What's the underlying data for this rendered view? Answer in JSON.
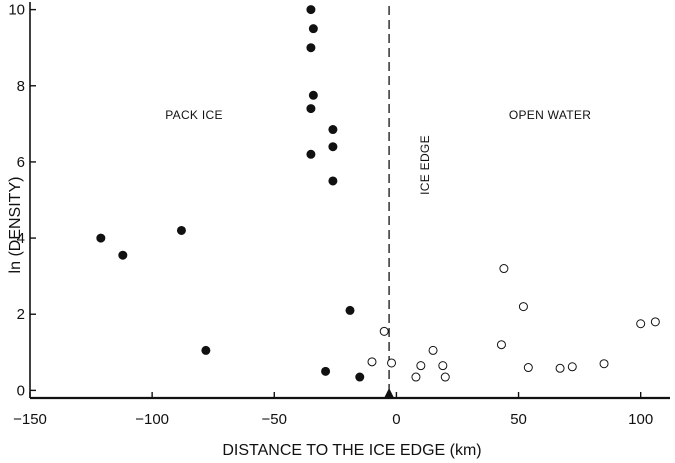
{
  "chart_data": {
    "type": "scatter",
    "xlabel": "DISTANCE TO THE ICE EDGE (km)",
    "ylabel": "ln (DENSITY)",
    "xlim": [
      -150,
      112
    ],
    "ylim": [
      -0.2,
      10.2
    ],
    "xticks": [
      -150,
      -100,
      -50,
      0,
      50,
      100
    ],
    "xtick_labels": [
      "−150",
      "−100",
      "−50",
      "0",
      "50",
      "100"
    ],
    "yticks": [
      0,
      2,
      4,
      6,
      8,
      10
    ],
    "ytick_labels": [
      "0",
      "2",
      "4",
      "6",
      "8",
      "10"
    ],
    "annotations": {
      "pack_ice": "PACK ICE",
      "open_water": "OPEN WATER",
      "ice_edge": "ICE EDGE"
    },
    "ice_edge_x": -3,
    "series": [
      {
        "marker": "filled-circle",
        "points": [
          [
            -35,
            10.0
          ],
          [
            -34,
            9.5
          ],
          [
            -35,
            9.0
          ],
          [
            -34,
            7.75
          ],
          [
            -35,
            7.4
          ],
          [
            -26,
            6.85
          ],
          [
            -26,
            6.4
          ],
          [
            -35,
            6.2
          ],
          [
            -26,
            5.5
          ],
          [
            -121,
            4.0
          ],
          [
            -88,
            4.2
          ],
          [
            -112,
            3.55
          ],
          [
            -19,
            2.1
          ],
          [
            -78,
            1.05
          ],
          [
            -29,
            0.5
          ],
          [
            -15,
            0.35
          ]
        ]
      },
      {
        "marker": "open-circle",
        "points": [
          [
            44,
            3.2
          ],
          [
            52,
            2.2
          ],
          [
            -5,
            1.55
          ],
          [
            100,
            1.75
          ],
          [
            106,
            1.8
          ],
          [
            43,
            1.2
          ],
          [
            15,
            1.05
          ],
          [
            -10,
            0.75
          ],
          [
            -2,
            0.72
          ],
          [
            10,
            0.65
          ],
          [
            19,
            0.65
          ],
          [
            85,
            0.7
          ],
          [
            54,
            0.6
          ],
          [
            67,
            0.58
          ],
          [
            72,
            0.62
          ],
          [
            8,
            0.35
          ],
          [
            20,
            0.35
          ]
        ]
      }
    ]
  }
}
